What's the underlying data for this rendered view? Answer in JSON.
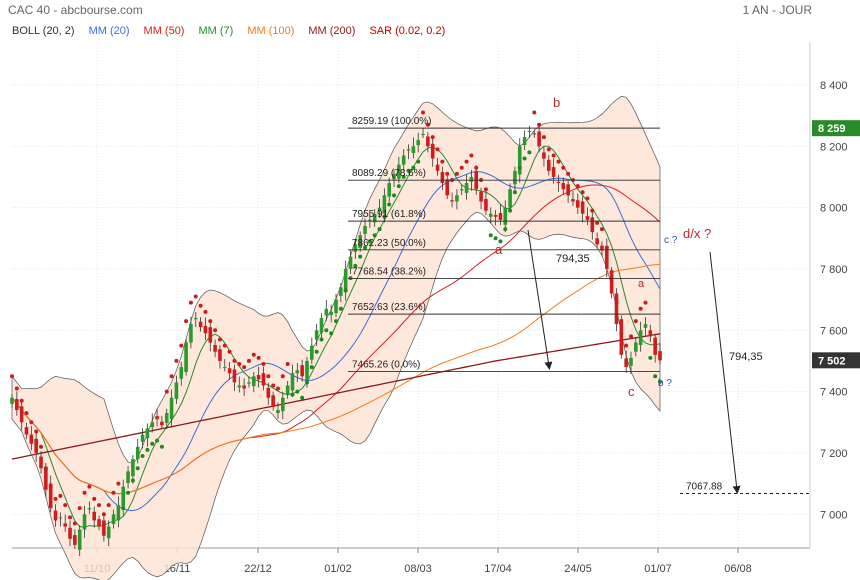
{
  "header": {
    "title": "CAC 40 - abcbourse.com",
    "period": "1 AN - JOUR"
  },
  "legend": [
    {
      "label": "BOLL (20, 2)",
      "color": "#333333"
    },
    {
      "label": "MM (20)",
      "color": "#3b6fd6"
    },
    {
      "label": "MM (50)",
      "color": "#d42020"
    },
    {
      "label": "MM (7)",
      "color": "#2a8a2a"
    },
    {
      "label": "MM (100)",
      "color": "#f07c1a"
    },
    {
      "label": "MM (200)",
      "color": "#8b1a1a"
    },
    {
      "label": "SAR (0.02, 0.2)",
      "color": "#c00000"
    }
  ],
  "chart_data": {
    "type": "candlestick",
    "title": "CAC 40",
    "ylim": [
      6890,
      8540
    ],
    "yticks": [
      7000,
      7200,
      7400,
      7600,
      7800,
      8000,
      8200,
      8400
    ],
    "ytick_labels": [
      "7 000",
      "7 200",
      "7 400",
      "7 600",
      "7 800",
      "8 000",
      "8 200",
      "8 400"
    ],
    "x_labels": [
      "11/10",
      "16/11",
      "22/12",
      "01/02",
      "08/03",
      "17/04",
      "24/05",
      "01/07",
      "06/08"
    ],
    "last_price": {
      "value": 8259,
      "label": "8 259",
      "color": "#2a8a2a"
    },
    "current_price": {
      "value": 7502,
      "label": "7 502",
      "color": "#333333"
    },
    "fibonacci": [
      {
        "value": 8259.19,
        "label": "8259.19  (100.0%)"
      },
      {
        "value": 8089.29,
        "label": "8089.29  (78.6%)"
      },
      {
        "value": 7955.91,
        "label": "7955.91  (61.8%)"
      },
      {
        "value": 7862.23,
        "label": "7862.23  (50.0%)"
      },
      {
        "value": 7768.54,
        "label": "7768.54  (38.2%)"
      },
      {
        "value": 7652.63,
        "label": "7652.63  (23.6%)"
      },
      {
        "value": 7465.26,
        "label": "7465.26  (0.0%)"
      }
    ],
    "target": {
      "value": 7067.88,
      "label": "7067.88"
    },
    "annotations": [
      {
        "text": "a",
        "color": "#b52a2a"
      },
      {
        "text": "b",
        "color": "#b52a2a"
      },
      {
        "text": "c ?",
        "color": "#2a4fb0"
      },
      {
        "text": "d/x ?",
        "color": "#b52a2a"
      },
      {
        "text": "794,35",
        "color": "#222222"
      },
      {
        "text": "a",
        "color": "#b52a2a"
      },
      {
        "text": "c",
        "color": "#b52a2a"
      },
      {
        "text": "b ?",
        "color": "#2a4fb0"
      },
      {
        "text": "794,35",
        "color": "#222222"
      }
    ],
    "closes": [
      7380,
      7340,
      7300,
      7260,
      7230,
      7200,
      7150,
      7080,
      7020,
      6980,
      6990,
      6960,
      6920,
      6900,
      6950,
      7000,
      7020,
      6980,
      6960,
      6930,
      6960,
      7000,
      7030,
      7090,
      7140,
      7180,
      7220,
      7260,
      7280,
      7300,
      7310,
      7290,
      7330,
      7380,
      7430,
      7480,
      7560,
      7620,
      7640,
      7610,
      7590,
      7560,
      7530,
      7500,
      7480,
      7460,
      7430,
      7420,
      7410,
      7430,
      7450,
      7440,
      7420,
      7380,
      7350,
      7340,
      7380,
      7420,
      7460,
      7470,
      7450,
      7500,
      7550,
      7600,
      7640,
      7670,
      7660,
      7700,
      7740,
      7800,
      7840,
      7880,
      7910,
      7940,
      7960,
      7980,
      8000,
      8040,
      8080,
      8110,
      8140,
      8170,
      8190,
      8200,
      8220,
      8240,
      8200,
      8160,
      8120,
      8080,
      8040,
      8020,
      8040,
      8060,
      8080,
      8100,
      8060,
      8020,
      7990,
      7980,
      7970,
      7960,
      8000,
      8060,
      8120,
      8200,
      8230,
      8250,
      8240,
      8200,
      8160,
      8120,
      8100,
      8080,
      8060,
      8040,
      8020,
      8000,
      7980,
      7960,
      7920,
      7880,
      7860,
      7800,
      7720,
      7620,
      7520,
      7480,
      7510,
      7560,
      7600,
      7620,
      7580,
      7520,
      7502
    ]
  }
}
